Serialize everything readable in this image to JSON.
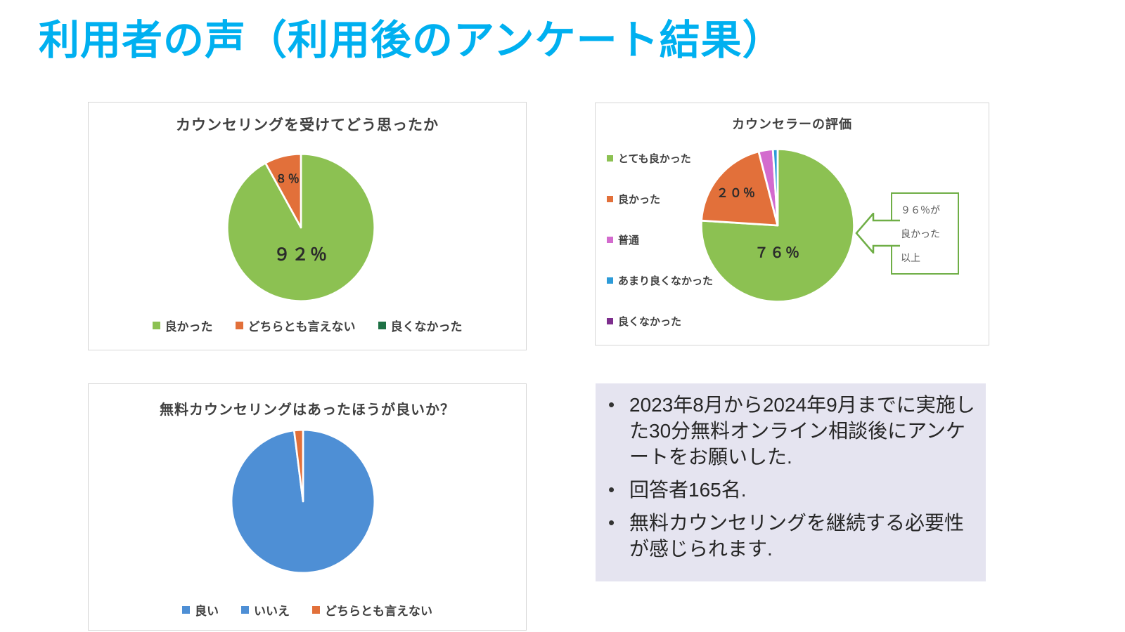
{
  "page": {
    "title": "利用者の声（利用後のアンケート結果）",
    "title_color": "#00B0F0",
    "background": "#FFFFFF"
  },
  "chart_data": [
    {
      "type": "pie",
      "title": "カウンセリングを受けてどう思ったか",
      "legend_position": "bottom",
      "slices": [
        {
          "label": "良かった",
          "value": 92,
          "color": "#8CC152",
          "data_label": "９２％"
        },
        {
          "label": "どちらとも言えない",
          "value": 8,
          "color": "#E2703A",
          "data_label": "８％"
        },
        {
          "label": "良くなかった",
          "value": 0,
          "color": "#1E7145"
        }
      ]
    },
    {
      "type": "pie",
      "title": "カウンセラーの評価",
      "legend_position": "left",
      "slices": [
        {
          "label": "とても良かった",
          "value": 76,
          "color": "#8CC152",
          "data_label": "７６％"
        },
        {
          "label": "良かった",
          "value": 20,
          "color": "#E2703A",
          "data_label": "２０％"
        },
        {
          "label": "普通",
          "value": 3,
          "color": "#D36BCE"
        },
        {
          "label": "あまり良くなかった",
          "value": 1,
          "color": "#2D9BD8"
        },
        {
          "label": "良くなかった",
          "value": 0,
          "color": "#7D2E8D"
        }
      ],
      "callout": {
        "text": "９６％が\n良かった\n以上",
        "border_color": "#6FAE46"
      }
    },
    {
      "type": "pie",
      "title": "無料カウンセリングはあったほうが良いか？",
      "legend_position": "bottom",
      "slices": [
        {
          "label": "良い",
          "value": 98,
          "color": "#4E8FD5"
        },
        {
          "label": "いいえ",
          "value": 0,
          "color": "#4E8FD5"
        },
        {
          "label": "どちらとも言えない",
          "value": 2,
          "color": "#E2703A"
        }
      ]
    }
  ],
  "notes": {
    "background": "#E5E4F0",
    "bullets": [
      "2023年8月から2024年9月までに実施した30分無料オンライン相談後にアンケートをお願いした.",
      "回答者165名.",
      "無料カウンセリングを継続する必要性が感じられます."
    ]
  }
}
